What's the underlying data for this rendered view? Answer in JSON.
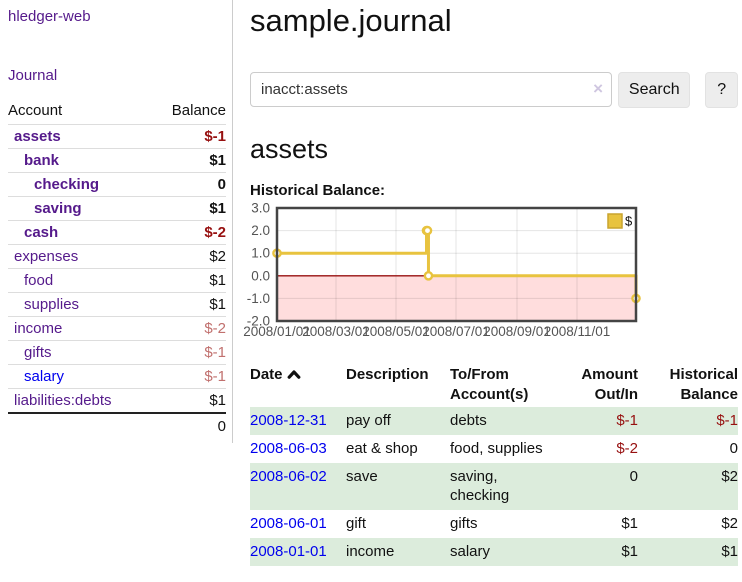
{
  "app": {
    "brand": "hledger-web",
    "nav": {
      "journal": "Journal"
    }
  },
  "sidebar": {
    "columns": {
      "account": "Account",
      "balance": "Balance"
    },
    "accounts": [
      {
        "name": "assets",
        "depth": 1,
        "bold": true,
        "balance": "$-1",
        "balance_tone": "negstrong"
      },
      {
        "name": "bank",
        "depth": 2,
        "bold": true,
        "balance": "$1",
        "balance_tone": "pos"
      },
      {
        "name": "checking",
        "depth": 3,
        "bold": true,
        "balance": "0",
        "balance_tone": "pos"
      },
      {
        "name": "saving",
        "depth": 3,
        "bold": true,
        "balance": "$1",
        "balance_tone": "pos"
      },
      {
        "name": "cash",
        "depth": 2,
        "bold": true,
        "balance": "$-2",
        "balance_tone": "negstrong"
      },
      {
        "name": "expenses",
        "depth": 1,
        "bold": false,
        "balance": "$2",
        "balance_tone": "pos"
      },
      {
        "name": "food",
        "depth": 2,
        "bold": false,
        "balance": "$1",
        "balance_tone": "pos"
      },
      {
        "name": "supplies",
        "depth": 2,
        "bold": false,
        "balance": "$1",
        "balance_tone": "pos"
      },
      {
        "name": "income",
        "depth": 1,
        "bold": false,
        "balance": "$-2",
        "balance_tone": "negsoft"
      },
      {
        "name": "gifts",
        "depth": 2,
        "bold": false,
        "balance": "$-1",
        "balance_tone": "negsoft"
      },
      {
        "name": "salary",
        "depth": 2,
        "bold": false,
        "link_tone": "unvisited",
        "balance": "$-1",
        "balance_tone": "negsoft"
      },
      {
        "name": "liabilities:debts",
        "depth": 1,
        "bold": false,
        "balance": "$1",
        "balance_tone": "pos"
      }
    ],
    "total": "0"
  },
  "main": {
    "title": "sample.journal",
    "search": {
      "value": "inacct:assets",
      "clear_icon": "×",
      "button_label": "Search",
      "help_label": "?"
    },
    "account_title": "assets",
    "chart_heading": "Historical Balance:"
  },
  "chart_data": {
    "type": "line",
    "step": true,
    "title": "Historical Balance:",
    "series": [
      {
        "name": "$",
        "color": "#e8c33f",
        "points": [
          [
            "2008/01/01",
            1
          ],
          [
            "2008/06/01",
            2
          ],
          [
            "2008/06/02",
            2
          ],
          [
            "2008/06/03",
            0
          ],
          [
            "2008/12/31",
            -1
          ]
        ]
      }
    ],
    "xlim": [
      "2008/01/01",
      "2008/12/31"
    ],
    "ylim": [
      -2,
      3
    ],
    "x_ticks": [
      "2008/01/01",
      "2008/03/01",
      "2008/05/01",
      "2008/07/01",
      "2008/09/01",
      "2008/11/01"
    ],
    "y_ticks": [
      3.0,
      2.0,
      1.0,
      0.0,
      -1.0,
      -2.0
    ],
    "grid": true,
    "legend_position": "top-right",
    "legend_label": "$",
    "negative_region_color": "#ffdddd",
    "zero_line_color": "#991111",
    "border_color": "#444444",
    "tick_label_color": "#545454"
  },
  "register": {
    "headers": {
      "date": "Date",
      "description": "Description",
      "account_line1": "To/From",
      "account_line2": "Account(s)",
      "amount_line1": "Amount",
      "amount_line2": "Out/In",
      "balance_line1": "Historical",
      "balance_line2": "Balance"
    },
    "sort_icon": "chevron-up",
    "rows": [
      {
        "date": "2008-12-31",
        "description": "pay off",
        "accounts": "debts",
        "amount": "$-1",
        "amount_neg": true,
        "balance": "$-1",
        "balance_neg": true,
        "shaded": true
      },
      {
        "date": "2008-06-03",
        "description": "eat & shop",
        "accounts": "food, supplies",
        "amount": "$-2",
        "amount_neg": true,
        "balance": "0",
        "balance_neg": false,
        "shaded": false
      },
      {
        "date": "2008-06-02",
        "description": "save",
        "accounts": "saving,\nchecking",
        "amount": "0",
        "amount_neg": false,
        "balance": "$2",
        "balance_neg": false,
        "shaded": true
      },
      {
        "date": "2008-06-01",
        "description": "gift",
        "accounts": "gifts",
        "amount": "$1",
        "amount_neg": false,
        "balance": "$2",
        "balance_neg": false,
        "shaded": false
      },
      {
        "date": "2008-01-01",
        "description": "income",
        "accounts": "salary",
        "amount": "$1",
        "amount_neg": false,
        "balance": "$1",
        "balance_neg": false,
        "shaded": true
      }
    ]
  },
  "colors": {
    "link_purple": "#551a8b",
    "link_blue": "#0000ee",
    "neg_strong": "#971010",
    "neg_soft": "#c1706e",
    "row_shade": "#dcecdc",
    "accent_gold": "#e8c33f"
  }
}
